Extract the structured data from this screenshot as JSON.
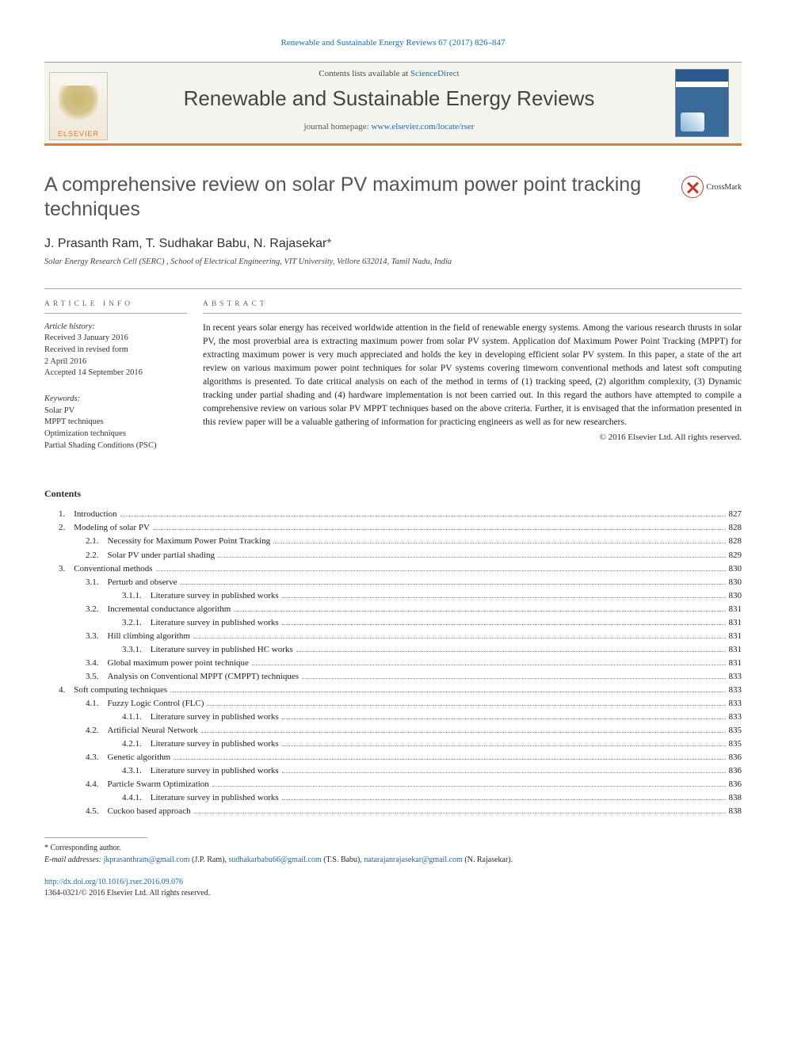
{
  "top_link": "Renewable and Sustainable Energy Reviews 67 (2017) 826–847",
  "banner": {
    "elsevier": "ELSEVIER",
    "contents_prefix": "Contents lists available at ",
    "contents_link": "ScienceDirect",
    "journal_name": "Renewable and Sustainable Energy Reviews",
    "homepage_prefix": "journal homepage: ",
    "homepage_link": "www.elsevier.com/locate/rser"
  },
  "title": "A comprehensive review on solar PV maximum power point tracking techniques",
  "crossmark": "CrossMark",
  "authors_html_parts": {
    "a1": "J. Prasanth Ram, T. Sudhakar Babu, N. Rajasekar",
    "ast": "*"
  },
  "affiliation": "Solar Energy Research Cell (SERC) , School of Electrical Engineering, VIT University, Vellore 632014, Tamil Nadu, India",
  "info_header": "article info",
  "abstract_header": "abstract",
  "history": {
    "label": "Article history:",
    "l1": "Received 3 January 2016",
    "l2": "Received in revised form",
    "l3": "2 April 2016",
    "l4": "Accepted 14 September 2016"
  },
  "keywords": {
    "label": "Keywords:",
    "k1": "Solar PV",
    "k2": "MPPT techniques",
    "k3": "Optimization techniques",
    "k4": "Partial Shading Conditions (PSC)"
  },
  "abstract": "In recent years solar energy has received worldwide attention in the field of renewable energy systems. Among the various research thrusts in solar PV, the most proverbial area is extracting maximum power from solar PV system. Application dof Maximum Power Point Tracking (MPPT) for extracting maximum power is very much appreciated and holds the key in developing efficient solar PV system. In this paper, a state of the art review on various maximum power point techniques for solar PV systems covering timeworn conventional methods and latest soft computing algorithms is presented. To date critical analysis on each of the method in terms of (1) tracking speed, (2) algorithm complexity, (3) Dynamic tracking under partial shading and (4) hardware implementation is not been carried out. In this regard the authors have attempted to compile a comprehensive review on various solar PV MPPT techniques based on the above criteria. Further, it is envisaged that the information presented in this review paper will be a valuable gathering of information for practicing engineers as well as for new researchers.",
  "copyright": "© 2016 Elsevier Ltd. All rights reserved.",
  "contents_label": "Contents",
  "toc": [
    {
      "indent": 1,
      "num": "1.",
      "title": "Introduction",
      "page": "827"
    },
    {
      "indent": 1,
      "num": "2.",
      "title": "Modeling of solar PV",
      "page": "828"
    },
    {
      "indent": 2,
      "num": "2.1.",
      "title": "Necessity for Maximum Power Point Tracking",
      "page": "828"
    },
    {
      "indent": 2,
      "num": "2.2.",
      "title": "Solar PV under partial shading",
      "page": "829"
    },
    {
      "indent": 1,
      "num": "3.",
      "title": "Conventional methods",
      "page": "830"
    },
    {
      "indent": 2,
      "num": "3.1.",
      "title": "Perturb and observe",
      "page": "830"
    },
    {
      "indent": 3,
      "num": "3.1.1.",
      "title": "Literature survey in published works",
      "page": "830"
    },
    {
      "indent": 2,
      "num": "3.2.",
      "title": "Incremental conductance algorithm",
      "page": "831"
    },
    {
      "indent": 3,
      "num": "3.2.1.",
      "title": "Literature survey in published works",
      "page": "831"
    },
    {
      "indent": 2,
      "num": "3.3.",
      "title": "Hill climbing algorithm",
      "page": "831"
    },
    {
      "indent": 3,
      "num": "3.3.1.",
      "title": "Literature survey in published HC works",
      "page": "831"
    },
    {
      "indent": 2,
      "num": "3.4.",
      "title": "Global maximum power point technique",
      "page": "831"
    },
    {
      "indent": 2,
      "num": "3.5.",
      "title": "Analysis on Conventional MPPT (CMPPT) techniques",
      "page": "833"
    },
    {
      "indent": 1,
      "num": "4.",
      "title": "Soft computing techniques",
      "page": "833"
    },
    {
      "indent": 2,
      "num": "4.1.",
      "title": "Fuzzy Logic Control (FLC)",
      "page": "833"
    },
    {
      "indent": 3,
      "num": "4.1.1.",
      "title": "Literature survey in published works",
      "page": "833"
    },
    {
      "indent": 2,
      "num": "4.2.",
      "title": "Artificial Neural Network",
      "page": "835"
    },
    {
      "indent": 3,
      "num": "4.2.1.",
      "title": "Literature survey in published works",
      "page": "835"
    },
    {
      "indent": 2,
      "num": "4.3.",
      "title": "Genetic algorithm",
      "page": "836"
    },
    {
      "indent": 3,
      "num": "4.3.1.",
      "title": "Literature survey in published works",
      "page": "836"
    },
    {
      "indent": 2,
      "num": "4.4.",
      "title": "Particle Swarm Optimization",
      "page": "836"
    },
    {
      "indent": 3,
      "num": "4.4.1.",
      "title": "Literature survey in published works",
      "page": "838"
    },
    {
      "indent": 2,
      "num": "4.5.",
      "title": "Cuckoo based approach",
      "page": "838"
    }
  ],
  "footnote": {
    "corr": "* Corresponding author.",
    "email_label": "E-mail addresses: ",
    "e1": "jkprasanthram@gmail.com",
    "e1p": " (J.P. Ram), ",
    "e2": "sudhakarbabu66@gmail.com",
    "e2p": " (T.S. Babu), ",
    "e3": "natarajanrajasekar@gmail.com",
    "e3p": " (N. Rajasekar)."
  },
  "doi": {
    "link": "http://dx.doi.org/10.1016/j.rser.2016.09.076",
    "issn": "1364-0321/© 2016 Elsevier Ltd. All rights reserved."
  }
}
